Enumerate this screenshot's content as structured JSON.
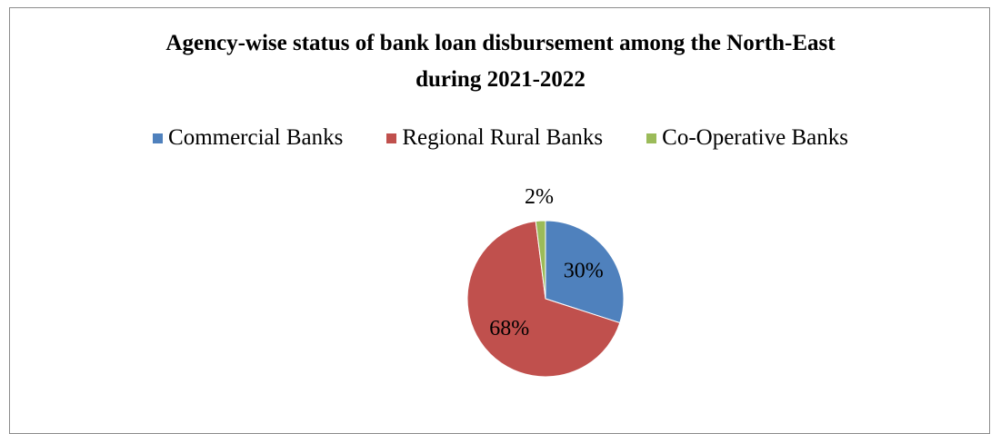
{
  "chart_data": {
    "type": "pie",
    "title_line1": "Agency-wise status of bank loan disbursement  among the North-East",
    "title_line2": "during 2021-2022",
    "legend_position": "top",
    "slices": [
      {
        "name": "Commercial Banks",
        "value": 30,
        "label": "30%",
        "color": "#4f81bd"
      },
      {
        "name": "Regional Rural Banks",
        "value": 68,
        "label": "68%",
        "color": "#c0504d"
      },
      {
        "name": "Co-Operative Banks",
        "value": 2,
        "label": "2%",
        "color": "#9bbb59"
      }
    ]
  }
}
